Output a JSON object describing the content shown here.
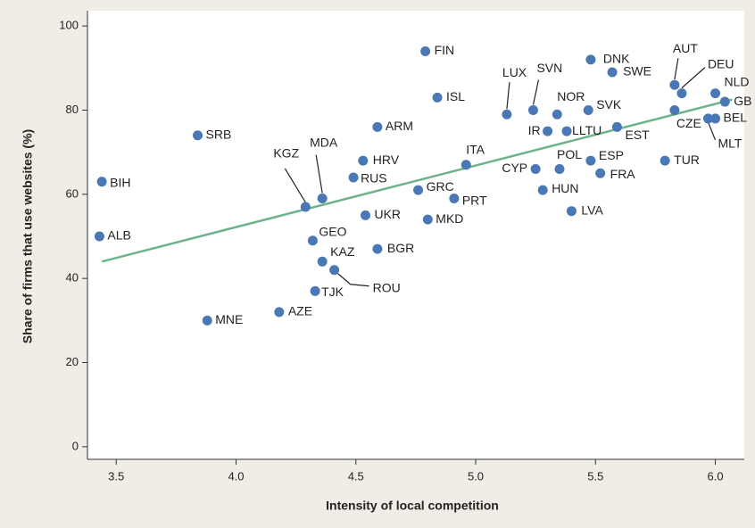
{
  "chart_data": {
    "type": "scatter",
    "xlabel": "Intensity of local competition",
    "ylabel": "Share of firms that use websites (%)",
    "xlim": [
      3.38,
      6.106
    ],
    "ylim": [
      -3,
      103
    ],
    "xticks": [
      3.5,
      {
        "value": 4,
        "label": "4.0"
      },
      4.5,
      {
        "value": 5,
        "label": "5.0"
      },
      5.5,
      {
        "value": 6,
        "label": "6.0"
      }
    ],
    "yticks": [
      0,
      20,
      40,
      60,
      80,
      100
    ],
    "series": [
      {
        "color": "#4a78b5",
        "labels": [
          "FIN",
          "DNK",
          "SWE",
          "AUT",
          "DEU",
          "NLD",
          "GB",
          "ISL",
          "LUX",
          "SVN",
          "NOR",
          "SVK",
          "CZE",
          "BEL",
          "MLT",
          "ARM",
          "IR",
          "LLTU",
          "EST",
          "SRB",
          "TUR",
          "HRV",
          "ITA",
          "ESP",
          "CYP",
          "POL",
          "FRA",
          "RUS",
          "BIH",
          "GRC",
          "HUN",
          "PRT",
          "MDA",
          "KGZ",
          "UKR",
          "MKD",
          "LVA",
          "ALB",
          "GEO",
          "BGR",
          "KAZ",
          "ROU",
          "TJK",
          "AZE",
          "MNE"
        ],
        "x": [
          4.79,
          5.48,
          5.57,
          5.83,
          5.86,
          6.0,
          6.04,
          4.84,
          5.13,
          5.24,
          5.34,
          5.47,
          5.83,
          6.0,
          5.97,
          4.59,
          5.3,
          5.38,
          5.59,
          3.84,
          5.79,
          4.53,
          4.96,
          5.48,
          5.25,
          5.35,
          5.52,
          4.49,
          3.44,
          4.76,
          5.28,
          4.91,
          4.36,
          4.29,
          4.54,
          4.8,
          5.4,
          3.43,
          4.32,
          4.59,
          4.36,
          4.41,
          4.33,
          4.18,
          3.88
        ],
        "values": [
          94,
          92,
          89,
          86,
          84,
          84,
          82,
          83,
          79,
          80,
          79,
          80,
          80,
          78,
          78,
          76,
          75,
          75,
          76,
          74,
          68,
          68,
          67,
          68,
          66,
          66,
          65,
          64,
          63,
          61,
          61,
          59,
          59,
          57,
          55,
          54,
          56,
          50,
          49,
          47,
          44,
          42,
          37,
          32,
          30
        ]
      }
    ],
    "trendline": {
      "color": "#6db38a",
      "x": [
        3.44,
        6.07
      ],
      "values": [
        44,
        82.5
      ]
    }
  }
}
